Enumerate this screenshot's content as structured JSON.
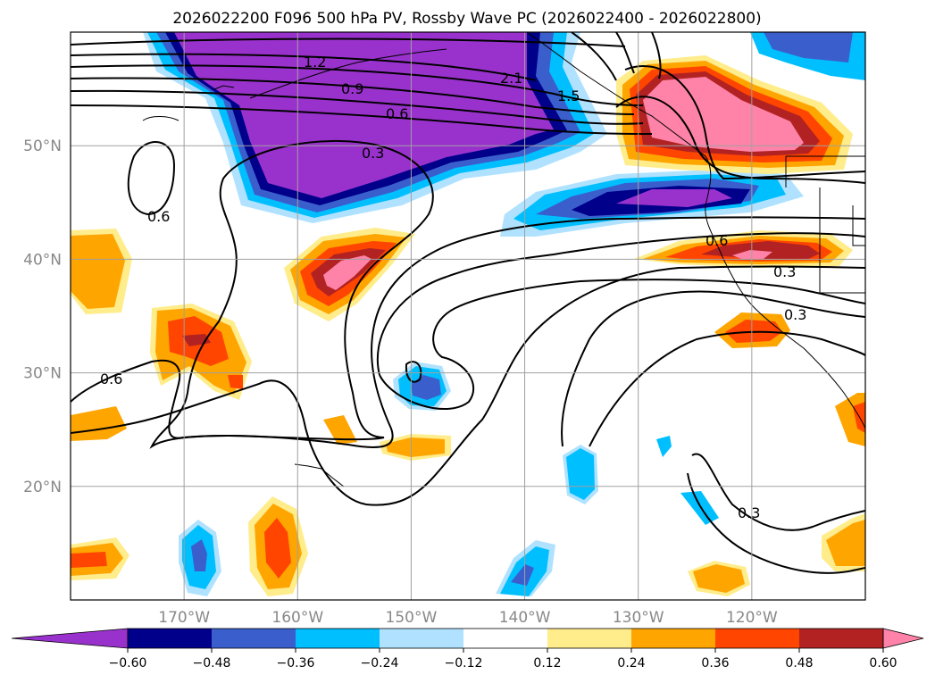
{
  "title": "2026022200 F096 500 hPa PV, Rossby Wave PC (2026022400 - 2026022800)",
  "map": {
    "lon_range": [
      -180,
      -110
    ],
    "lat_range": [
      10,
      60
    ],
    "lat_ticks": [
      {
        "value": 50,
        "label": "50°N"
      },
      {
        "value": 40,
        "label": "40°N"
      },
      {
        "value": 30,
        "label": "30°N"
      },
      {
        "value": 20,
        "label": "20°N"
      }
    ],
    "lon_ticks": [
      {
        "value": -170,
        "label": "170°W"
      },
      {
        "value": -160,
        "label": "160°W"
      },
      {
        "value": -150,
        "label": "150°W"
      },
      {
        "value": -140,
        "label": "140°W"
      },
      {
        "value": -130,
        "label": "130°W"
      },
      {
        "value": -120,
        "label": "120°W"
      }
    ],
    "grid": true
  },
  "colorbar": {
    "levels": [
      -0.6,
      -0.48,
      -0.36,
      -0.24,
      -0.12,
      0.12,
      0.24,
      0.36,
      0.48,
      0.6
    ],
    "tick_labels": [
      "−0.60",
      "−0.48",
      "−0.36",
      "−0.24",
      "−0.12",
      "0.12",
      "0.24",
      "0.36",
      "0.48",
      "0.60"
    ],
    "colors": [
      "#9932cc",
      "#00008b",
      "#3a5fcd",
      "#00bfff",
      "#b0e2ff",
      "#ffffff",
      "#ffec8b",
      "#ffa500",
      "#ff4500",
      "#b22222",
      "#ff83a8"
    ],
    "extend": "both"
  },
  "contour_labels": [
    "2.1",
    "1.5",
    "1.2",
    "0.9",
    "0.6",
    "0.3",
    "0.6",
    "0.6",
    "0.6",
    "0.3",
    "0.3",
    "0.3"
  ],
  "colors": {
    "negative_core": "#9932cc",
    "positive_core": "#ff83a8"
  }
}
